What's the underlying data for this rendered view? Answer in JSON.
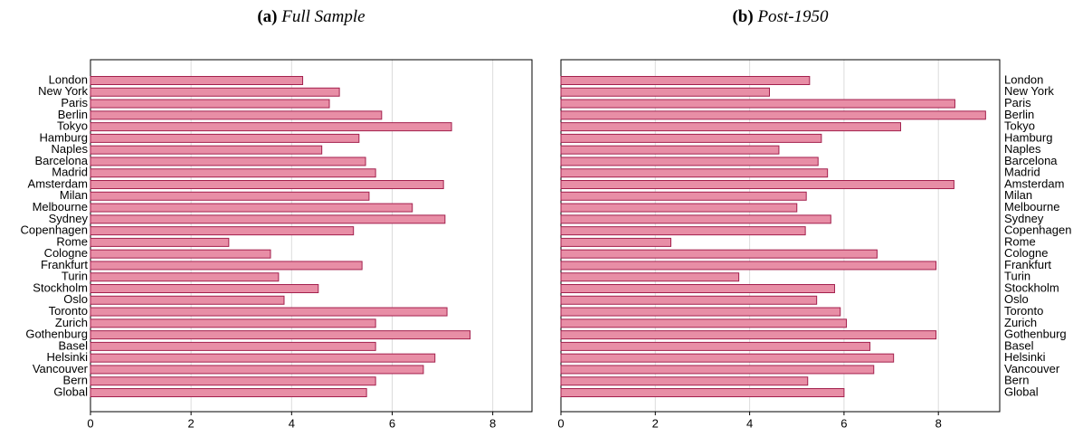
{
  "chart_data": [
    {
      "type": "bar",
      "label": "(a)",
      "title": "Full Sample",
      "categories": [
        "London",
        "New York",
        "Paris",
        "Berlin",
        "Tokyo",
        "Hamburg",
        "Naples",
        "Barcelona",
        "Madrid",
        "Amsterdam",
        "Milan",
        "Melbourne",
        "Sydney",
        "Copenhagen",
        "Rome",
        "Cologne",
        "Frankfurt",
        "Turin",
        "Stockholm",
        "Oslo",
        "Toronto",
        "Zurich",
        "Gothenburg",
        "Basel",
        "Helsinki",
        "Vancouver",
        "Bern",
        "Global"
      ],
      "values": [
        4.22,
        4.95,
        4.75,
        5.79,
        7.18,
        5.34,
        4.6,
        5.47,
        5.67,
        7.02,
        5.54,
        6.4,
        7.05,
        5.23,
        2.75,
        3.58,
        5.4,
        3.74,
        4.53,
        3.85,
        7.09,
        5.67,
        7.55,
        5.67,
        6.85,
        6.62,
        5.67,
        5.49
      ],
      "color": "#e88ea6",
      "edge_color": "#a3204d",
      "xlim": [
        0,
        8.78
      ],
      "xticks": [
        0,
        2,
        4,
        6,
        8
      ],
      "grid": true
    },
    {
      "type": "bar",
      "label": "(b)",
      "title": "Post-1950",
      "categories": [
        "London",
        "New York",
        "Paris",
        "Berlin",
        "Tokyo",
        "Hamburg",
        "Naples",
        "Barcelona",
        "Madrid",
        "Amsterdam",
        "Milan",
        "Melbourne",
        "Sydney",
        "Copenhagen",
        "Rome",
        "Cologne",
        "Frankfurt",
        "Turin",
        "Stockholm",
        "Oslo",
        "Toronto",
        "Zurich",
        "Gothenburg",
        "Basel",
        "Helsinki",
        "Vancouver",
        "Bern",
        "Global"
      ],
      "values": [
        5.27,
        4.42,
        8.35,
        9.0,
        7.2,
        5.52,
        4.62,
        5.45,
        5.65,
        8.33,
        5.2,
        5.0,
        5.72,
        5.18,
        2.33,
        6.7,
        7.95,
        3.77,
        5.8,
        5.42,
        5.92,
        6.05,
        7.95,
        6.55,
        7.05,
        6.63,
        5.23,
        6.0
      ],
      "color": "#e88ea6",
      "edge_color": "#a3204d",
      "xlim": [
        0,
        9.3
      ],
      "xticks": [
        0,
        2,
        4,
        6,
        8
      ],
      "grid": true
    }
  ]
}
